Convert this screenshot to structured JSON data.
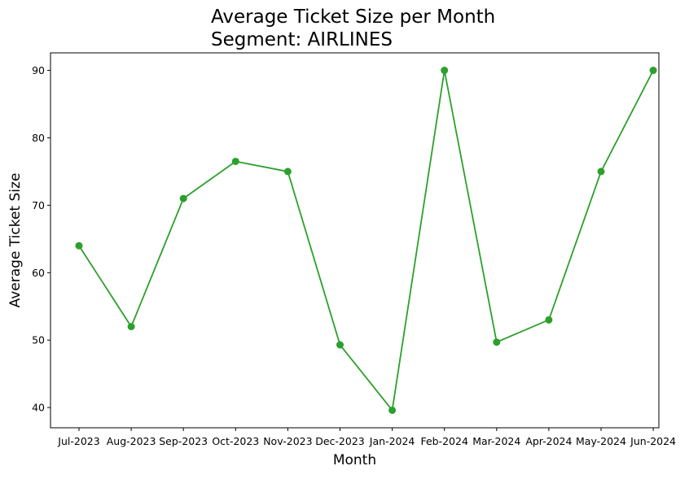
{
  "chart_data": {
    "type": "line",
    "title_lines": [
      "Average Ticket Size per Month",
      "Segment: AIRLINES"
    ],
    "xlabel": "Month",
    "ylabel": "Average Ticket Size",
    "categories": [
      "Jul-2023",
      "Aug-2023",
      "Sep-2023",
      "Oct-2023",
      "Nov-2023",
      "Dec-2023",
      "Jan-2024",
      "Feb-2024",
      "Mar-2024",
      "Apr-2024",
      "May-2024",
      "Jun-2024"
    ],
    "series": [
      {
        "values": [
          64.0,
          52.0,
          71.0,
          76.5,
          75.0,
          49.3,
          39.6,
          90.0,
          49.7,
          53.0,
          75.0,
          90.0
        ],
        "color": "#2ca02c",
        "marker": "circle"
      }
    ],
    "ylim": [
      37.0,
      92.6
    ],
    "yticks": [
      40,
      50,
      60,
      70,
      80,
      90
    ],
    "grid": false,
    "legend": "none"
  }
}
